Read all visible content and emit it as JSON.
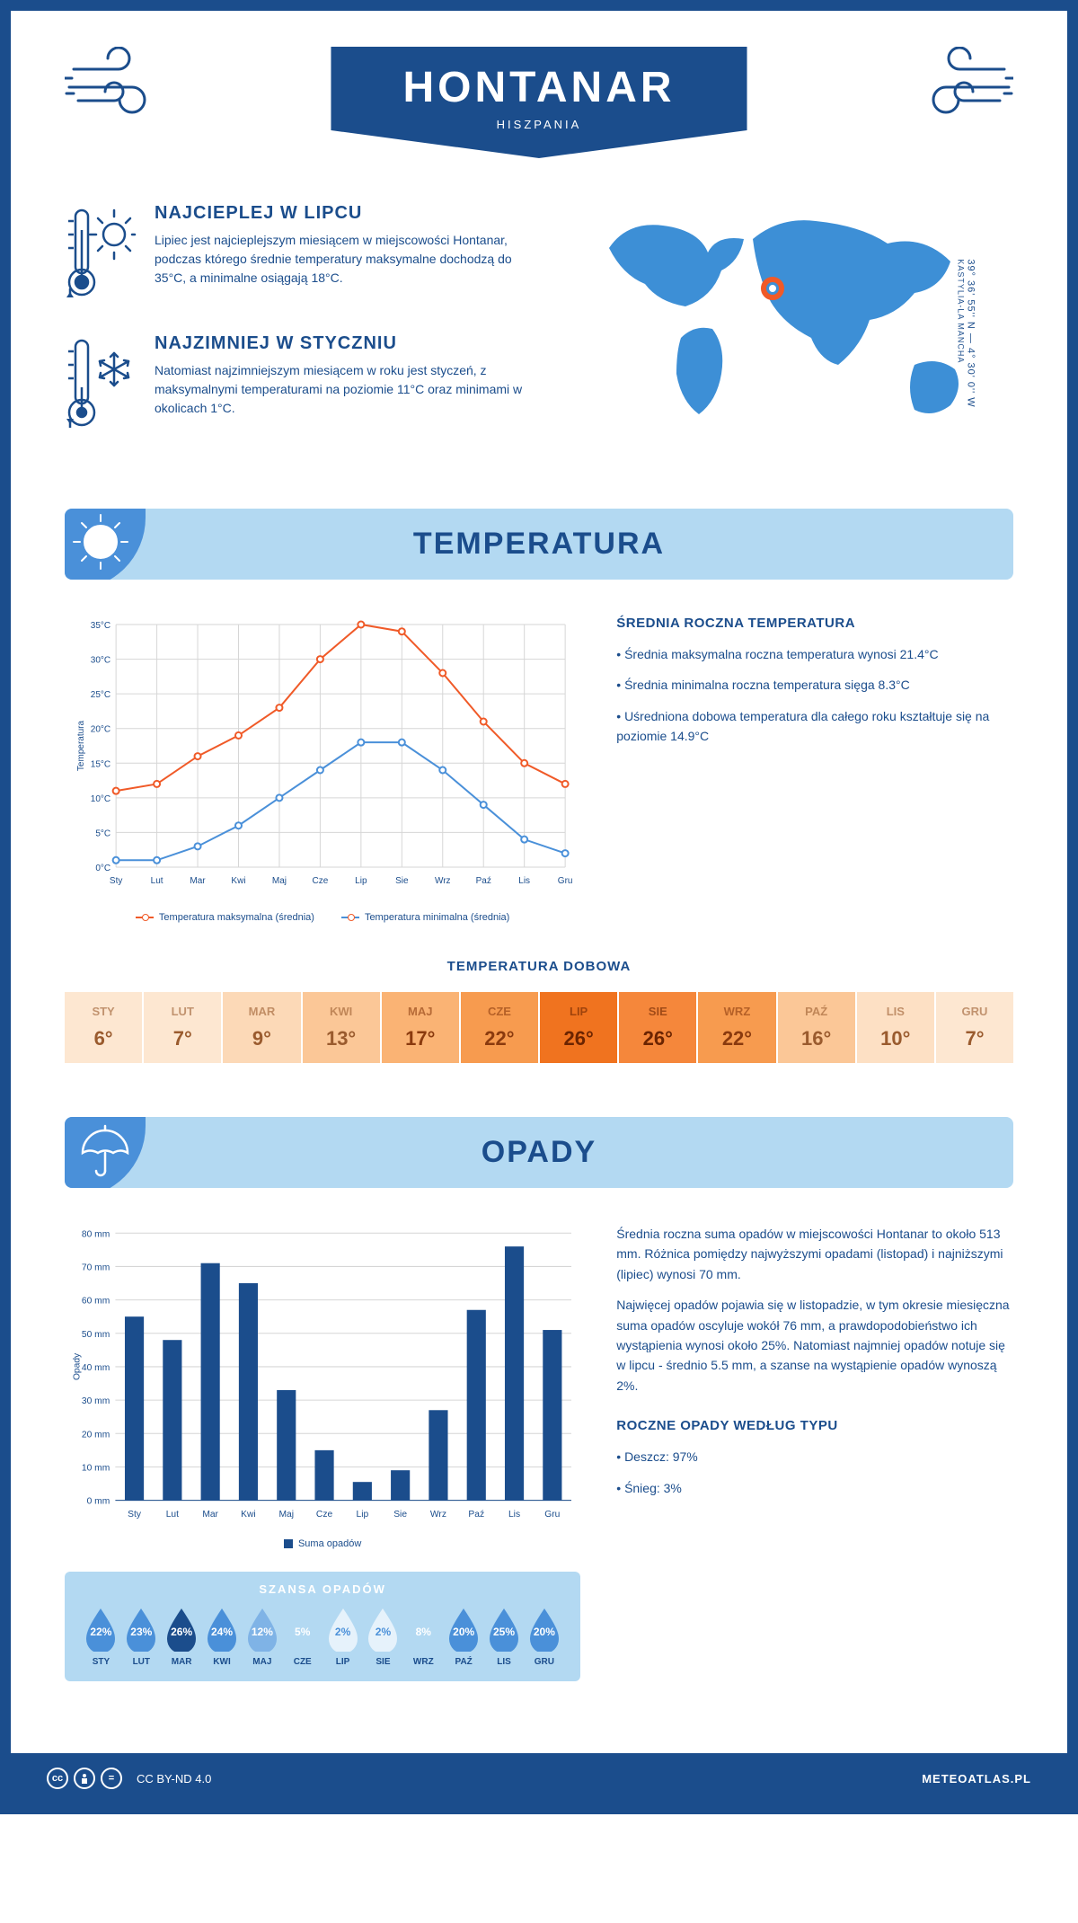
{
  "header": {
    "title": "HONTANAR",
    "subtitle": "HISZPANIA"
  },
  "coords": {
    "lat_lon": "39° 36' 55'' N — 4° 30' 0'' W",
    "region": "KASTYLIA-LA MANCHA"
  },
  "warm": {
    "heading": "NAJCIEPLEJ W LIPCU",
    "text": "Lipiec jest najcieplejszym miesiącem w miejscowości Hontanar, podczas którego średnie temperatury maksymalne dochodzą do 35°C, a minimalne osiągają 18°C."
  },
  "cold": {
    "heading": "NAJZIMNIEJ W STYCZNIU",
    "text": "Natomiast najzimniejszym miesiącem w roku jest styczeń, z maksymalnymi temperaturami na poziomie 11°C oraz minimami w okolicach 1°C."
  },
  "temp_section": {
    "title": "TEMPERATURA",
    "chart": {
      "type": "line",
      "months": [
        "Sty",
        "Lut",
        "Mar",
        "Kwi",
        "Maj",
        "Cze",
        "Lip",
        "Sie",
        "Wrz",
        "Paź",
        "Lis",
        "Gru"
      ],
      "y_label": "Temperatura",
      "ylim": [
        0,
        35
      ],
      "ytick_step": 5,
      "ytick_suffix": "°C",
      "series_max": {
        "label": "Temperatura maksymalna (średnia)",
        "color": "#f05a28",
        "values": [
          11,
          12,
          16,
          19,
          23,
          30,
          35,
          34,
          28,
          21,
          15,
          12
        ]
      },
      "series_min": {
        "label": "Temperatura minimalna (średnia)",
        "color": "#4a90d9",
        "values": [
          1,
          1,
          3,
          6,
          10,
          14,
          18,
          18,
          14,
          9,
          4,
          2
        ]
      },
      "grid_color": "#d6d6d6",
      "background": "#ffffff"
    },
    "summary": {
      "heading": "ŚREDNIA ROCZNA TEMPERATURA",
      "lines": [
        "Średnia maksymalna roczna temperatura wynosi 21.4°C",
        "Średnia minimalna roczna temperatura sięga 8.3°C",
        "Uśredniona dobowa temperatura dla całego roku kształtuje się na poziomie 14.9°C"
      ]
    },
    "daily": {
      "heading": "TEMPERATURA DOBOWA",
      "months": [
        "STY",
        "LUT",
        "MAR",
        "KWI",
        "MAJ",
        "CZE",
        "LIP",
        "SIE",
        "WRZ",
        "PAŹ",
        "LIS",
        "GRU"
      ],
      "values": [
        "6°",
        "7°",
        "9°",
        "13°",
        "17°",
        "22°",
        "26°",
        "26°",
        "22°",
        "16°",
        "10°",
        "7°"
      ],
      "colors": [
        "#fde7d1",
        "#fde7d1",
        "#fcd9b7",
        "#fbc797",
        "#fab374",
        "#f79b4f",
        "#f0731f",
        "#f5873b",
        "#f79b4f",
        "#fbc797",
        "#fde0c4",
        "#fde7d1"
      ],
      "text_colors": [
        "#9a5b2e",
        "#9a5b2e",
        "#9a5b2e",
        "#9a5b2e",
        "#8a3a0e",
        "#8a3a0e",
        "#6b2400",
        "#6b2400",
        "#8a3a0e",
        "#9a5b2e",
        "#9a5b2e",
        "#9a5b2e"
      ]
    }
  },
  "precip_section": {
    "title": "OPADY",
    "chart": {
      "type": "bar",
      "y_label": "Opady",
      "months": [
        "Sty",
        "Lut",
        "Mar",
        "Kwi",
        "Maj",
        "Cze",
        "Lip",
        "Sie",
        "Wrz",
        "Paź",
        "Lis",
        "Gru"
      ],
      "values": [
        55,
        48,
        71,
        65,
        33,
        15,
        5.5,
        9,
        27,
        57,
        76,
        51
      ],
      "ylim": [
        0,
        80
      ],
      "ytick_step": 10,
      "ytick_suffix": " mm",
      "bar_color": "#1b4d8c",
      "grid_color": "#d6d6d6",
      "legend_label": "Suma opadów"
    },
    "summary_p1": "Średnia roczna suma opadów w miejscowości Hontanar to około 513 mm. Różnica pomiędzy najwyższymi opadami (listopad) i najniższymi (lipiec) wynosi 70 mm.",
    "summary_p2": "Najwięcej opadów pojawia się w listopadzie, w tym okresie miesięczna suma opadów oscyluje wokół 76 mm, a prawdopodobieństwo ich wystąpienia wynosi około 25%. Natomiast najmniej opadów notuje się w lipcu - średnio 5.5 mm, a szanse na wystąpienie opadów wynoszą 2%.",
    "type_heading": "ROCZNE OPADY WEDŁUG TYPU",
    "type_lines": [
      "Deszcz: 97%",
      "Śnieg: 3%"
    ],
    "chance": {
      "heading": "SZANSA OPADÓW",
      "months": [
        "STY",
        "LUT",
        "MAR",
        "KWI",
        "MAJ",
        "CZE",
        "LIP",
        "SIE",
        "WRZ",
        "PAŹ",
        "LIS",
        "GRU"
      ],
      "values": [
        "22%",
        "23%",
        "26%",
        "24%",
        "12%",
        "5%",
        "2%",
        "2%",
        "8%",
        "20%",
        "25%",
        "20%"
      ],
      "fills": [
        "#4a90d9",
        "#4a90d9",
        "#1b4d8c",
        "#4a90d9",
        "#7fb3e6",
        "#b3d9f2",
        "#e6f2fb",
        "#e6f2fb",
        "#b3d9f2",
        "#4a90d9",
        "#4a90d9",
        "#4a90d9"
      ],
      "text_colors": [
        "#fff",
        "#fff",
        "#fff",
        "#fff",
        "#fff",
        "#fff",
        "#4a90d9",
        "#4a90d9",
        "#fff",
        "#fff",
        "#fff",
        "#fff"
      ]
    }
  },
  "footer": {
    "license": "CC BY-ND 4.0",
    "site": "METEOATLAS.PL"
  }
}
